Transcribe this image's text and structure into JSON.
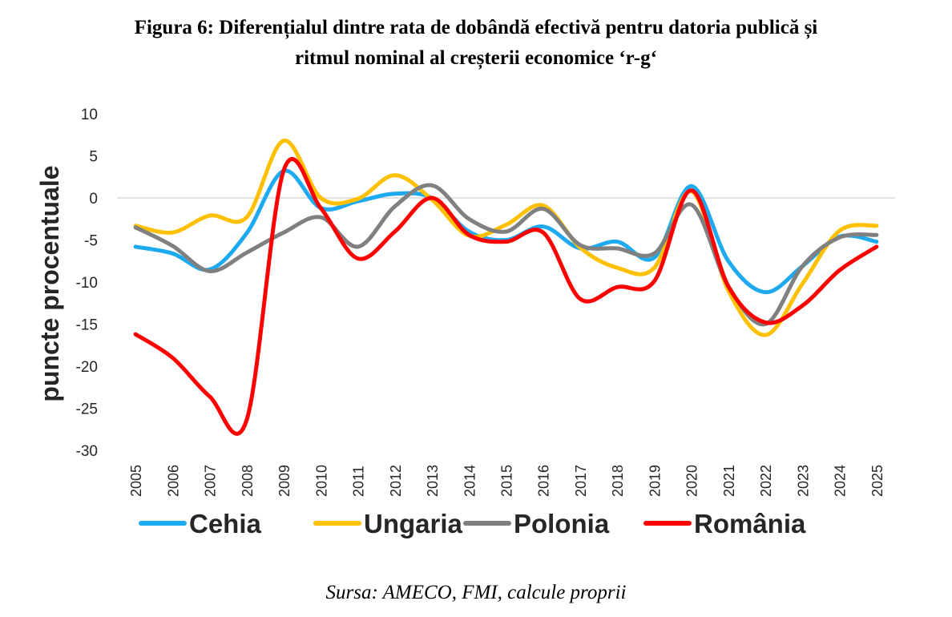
{
  "figure": {
    "title_line1": "Figura 6: Diferențialul dintre rata de dobândă efectivă pentru datoria publică și",
    "title_line2": "ritmul nominal al creșterii economice ‘r-g‘",
    "source": "Sursa: AMECO, FMI, calcule proprii"
  },
  "chart_data": {
    "type": "line",
    "title": "Figura 6: Diferențialul dintre rata de dobândă efectivă pentru datoria publică și ritmul nominal al creșterii economice ‘r-g‘",
    "xlabel": "",
    "ylabel": "puncte procentuale",
    "ylim": [
      -30,
      10
    ],
    "yticks": [
      10,
      5,
      0,
      -5,
      -10,
      -15,
      -20,
      -25,
      -30
    ],
    "grid": "zero line only",
    "legend": "bottom",
    "categories": [
      "2005",
      "2006",
      "2007",
      "2008",
      "2009",
      "2010",
      "2011",
      "2012",
      "2013",
      "2014",
      "2015",
      "2016",
      "2017",
      "2018",
      "2019",
      "2020",
      "2021",
      "2022",
      "2023",
      "2024",
      "2025"
    ],
    "series": [
      {
        "name": "Cehia",
        "color": "#1eaaf1",
        "values": [
          -5.8,
          -6.6,
          -8.5,
          -4.2,
          3.2,
          -1.2,
          -0.4,
          0.5,
          0.0,
          -4.0,
          -5.0,
          -3.4,
          -6.0,
          -5.2,
          -7.1,
          1.4,
          -7.5,
          -11.2,
          -8.1,
          -4.6,
          -5.2
        ]
      },
      {
        "name": "Ungaria",
        "color": "#ffc000",
        "values": [
          -3.3,
          -4.1,
          -2.1,
          -2.3,
          6.8,
          0.0,
          -0.1,
          2.7,
          -0.2,
          -4.5,
          -3.2,
          -0.9,
          -5.9,
          -8.3,
          -8.3,
          0.8,
          -11.0,
          -16.3,
          -10.2,
          -3.9,
          -3.3
        ]
      },
      {
        "name": "Polonia",
        "color": "#808080",
        "values": [
          -3.5,
          -5.7,
          -8.7,
          -6.5,
          -4.1,
          -2.3,
          -5.8,
          -1.0,
          1.5,
          -2.5,
          -4.0,
          -1.3,
          -5.6,
          -6.0,
          -6.6,
          -0.8,
          -10.5,
          -15.0,
          -8.1,
          -4.7,
          -4.4
        ]
      },
      {
        "name": "România",
        "color": "#ff0000",
        "values": [
          -16.2,
          -19.0,
          -23.6,
          -26.4,
          3.3,
          -1.2,
          -7.2,
          -4.0,
          0.0,
          -4.4,
          -5.2,
          -4.1,
          -12.0,
          -10.6,
          -9.9,
          0.9,
          -10.5,
          -14.8,
          -12.8,
          -8.6,
          -5.8
        ]
      }
    ]
  }
}
